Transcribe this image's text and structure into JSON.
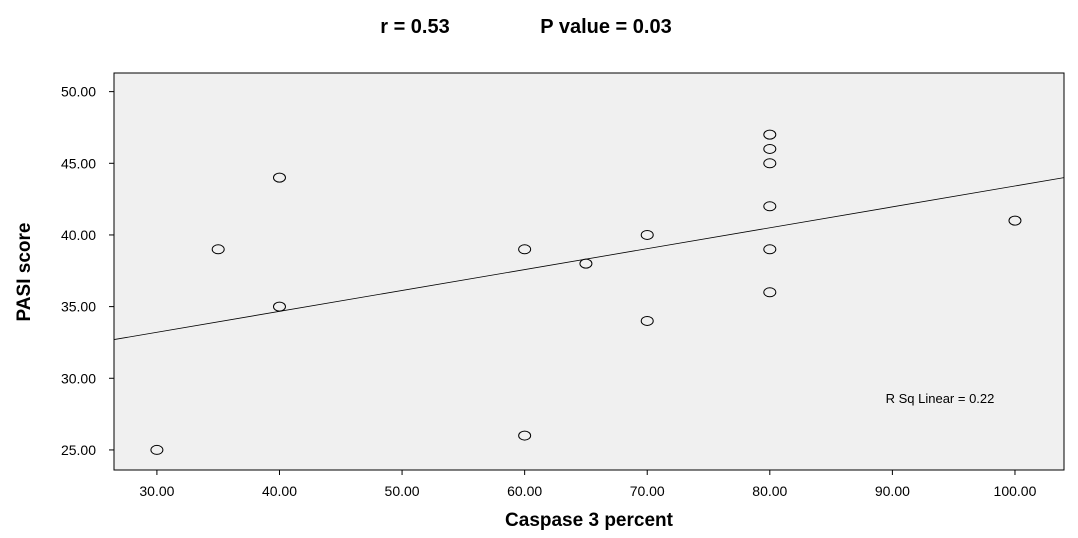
{
  "chart_data": {
    "type": "scatter",
    "title_r": "r = 0.53",
    "title_p": "P value = 0.03",
    "xlabel": "Caspase 3 percent",
    "ylabel": "PASI score",
    "xlim": [
      26.5,
      104
    ],
    "ylim": [
      23.6,
      51.3
    ],
    "x_ticks": [
      30,
      40,
      50,
      60,
      70,
      80,
      90,
      100
    ],
    "x_tick_labels": [
      "30.00",
      "40.00",
      "50.00",
      "60.00",
      "70.00",
      "80.00",
      "90.00",
      "100.00"
    ],
    "y_ticks": [
      25,
      30,
      35,
      40,
      45,
      50
    ],
    "y_tick_labels": [
      "25.00",
      "30.00",
      "35.00",
      "40.00",
      "45.00",
      "50.00"
    ],
    "points": [
      {
        "x": 30,
        "y": 25
      },
      {
        "x": 35,
        "y": 39
      },
      {
        "x": 40,
        "y": 44
      },
      {
        "x": 40,
        "y": 35
      },
      {
        "x": 60,
        "y": 39
      },
      {
        "x": 60,
        "y": 26
      },
      {
        "x": 65,
        "y": 38
      },
      {
        "x": 70,
        "y": 40
      },
      {
        "x": 70,
        "y": 34
      },
      {
        "x": 80,
        "y": 47
      },
      {
        "x": 80,
        "y": 46
      },
      {
        "x": 80,
        "y": 45
      },
      {
        "x": 80,
        "y": 42
      },
      {
        "x": 80,
        "y": 39
      },
      {
        "x": 80,
        "y": 36
      },
      {
        "x": 100,
        "y": 41
      }
    ],
    "fit_line": {
      "x": [
        26.5,
        104
      ],
      "y": [
        32.7,
        44.0
      ]
    },
    "annotation": "R Sq Linear = 0.22",
    "grid": false,
    "legend": "none",
    "colors": {
      "plot_bg": "#f0f0f0",
      "marker_stroke": "#000000",
      "line": "#000000"
    }
  }
}
